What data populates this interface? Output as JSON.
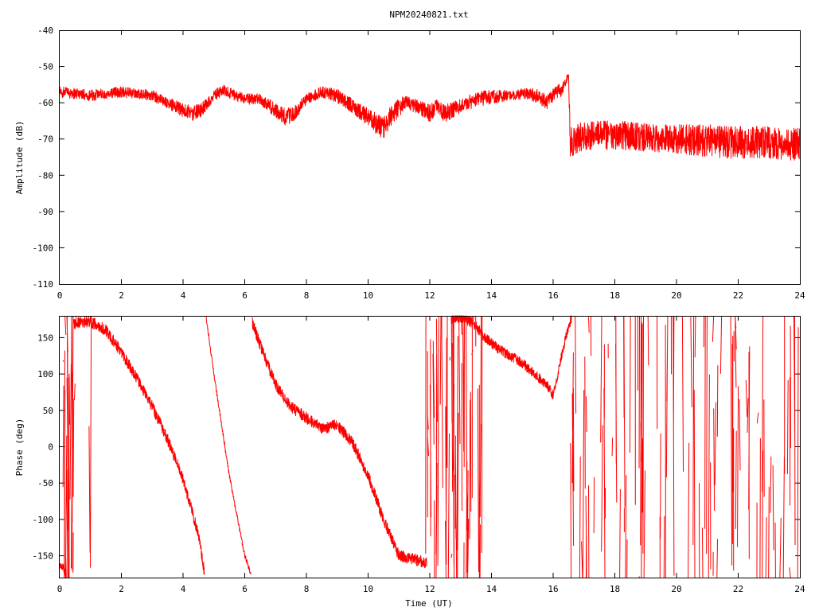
{
  "chart_data": [
    {
      "type": "line",
      "title": "NPM20240821.txt",
      "xlabel": "",
      "ylabel": "Amplitude (dB)",
      "xlim": [
        0,
        24
      ],
      "ylim": [
        -110,
        -40
      ],
      "x_ticks": [
        "0",
        "2",
        "4",
        "6",
        "8",
        "10",
        "12",
        "14",
        "16",
        "18",
        "20",
        "22",
        "24"
      ],
      "y_ticks": [
        "-40",
        "-50",
        "-60",
        "-70",
        "-80",
        "-90",
        "-100",
        "-110"
      ],
      "grid": false,
      "color": "#ff0000",
      "series": [
        {
          "x": [
            0,
            0.5,
            1,
            1.5,
            2,
            2.5,
            3,
            3.5,
            4,
            4.3,
            4.6,
            5,
            5.3,
            5.7,
            6,
            6.5,
            7,
            7.3,
            7.6,
            8,
            8.5,
            9,
            9.5,
            10,
            10.3,
            10.5,
            10.8,
            11.2,
            11.6,
            12,
            12.2,
            12.5,
            13,
            13.5,
            14,
            14.5,
            15,
            15.5,
            15.8,
            16,
            16.3,
            16.5,
            16.55,
            17,
            18,
            19,
            20,
            21,
            22,
            23,
            24
          ],
          "y": [
            -57,
            -57.5,
            -58,
            -57.5,
            -57,
            -57.5,
            -58,
            -60,
            -62,
            -63,
            -62,
            -58,
            -56.5,
            -58,
            -59,
            -59,
            -62,
            -64,
            -63,
            -59,
            -57,
            -58,
            -61,
            -64,
            -66,
            -67,
            -63,
            -60,
            -61,
            -63,
            -61,
            -63,
            -61,
            -59,
            -58.5,
            -58,
            -57.5,
            -58,
            -60,
            -58,
            -56,
            -52,
            -71,
            -69,
            -69,
            -69.5,
            -70,
            -70.5,
            -71,
            -71,
            -71.5
          ],
          "noise": [
            1.5,
            1.5,
            1.5,
            1.5,
            1.5,
            1.5,
            1.5,
            1.5,
            2,
            2,
            2,
            1.5,
            1.5,
            1.5,
            1.5,
            1.5,
            2,
            2.5,
            2,
            1.5,
            1.5,
            2,
            2,
            2.5,
            3,
            3,
            3,
            2,
            2,
            2.5,
            2,
            2.5,
            2,
            2,
            2,
            1.5,
            1.5,
            2,
            2,
            2,
            2,
            1,
            4,
            4,
            4,
            4,
            4,
            4.5,
            4.5,
            4.5,
            4.5
          ]
        }
      ]
    },
    {
      "type": "line",
      "title": "",
      "xlabel": "Time (UT)",
      "ylabel": "Phase (deg)",
      "xlim": [
        0,
        24
      ],
      "ylim": [
        -180,
        180
      ],
      "x_ticks": [
        "0",
        "2",
        "4",
        "6",
        "8",
        "10",
        "12",
        "14",
        "16",
        "18",
        "20",
        "22",
        "24"
      ],
      "y_ticks": [
        "150",
        "100",
        "50",
        "0",
        "-50",
        "-100",
        "-150"
      ],
      "grid": false,
      "color": "#ff0000",
      "segments": [
        {
          "x": [
            0,
            0.1,
            0.2
          ],
          "y": [
            -160,
            -165,
            -175
          ],
          "noise": 6
        },
        {
          "x": [
            0.45,
            1,
            1.5,
            2,
            2.5,
            3,
            3.5,
            4,
            4.5,
            4.7
          ],
          "y": [
            170,
            172,
            160,
            130,
            95,
            55,
            10,
            -45,
            -120,
            -175
          ],
          "noise": 8
        },
        {
          "x": [
            4.75,
            5,
            5.5,
            6,
            6.2
          ],
          "y": [
            178,
            100,
            -40,
            -150,
            -175
          ],
          "noise": 3
        },
        {
          "x": [
            6.25,
            6.5,
            7,
            7.5,
            8,
            8.5,
            9,
            9.5,
            10,
            10.5,
            11,
            11.5,
            11.9
          ],
          "y": [
            170,
            140,
            85,
            55,
            40,
            25,
            30,
            5,
            -40,
            -100,
            -150,
            -155,
            -160
          ],
          "noise": 8
        },
        {
          "x": [
            12.7,
            13,
            13.4,
            13.8,
            14.2,
            14.6,
            15,
            15.4,
            15.8,
            16,
            16.2,
            16.4,
            16.6
          ],
          "y": [
            175,
            178,
            170,
            150,
            135,
            125,
            115,
            100,
            85,
            70,
            110,
            150,
            178
          ],
          "noise": 7
        }
      ],
      "spike_regions": [
        {
          "x0": 0.1,
          "x1": 0.5,
          "count": 24
        },
        {
          "x0": 0.98,
          "x1": 1.02,
          "count": 2
        },
        {
          "x0": 11.85,
          "x1": 13.7,
          "count": 60
        },
        {
          "x0": 16.5,
          "x1": 24,
          "count": 110
        }
      ]
    }
  ]
}
